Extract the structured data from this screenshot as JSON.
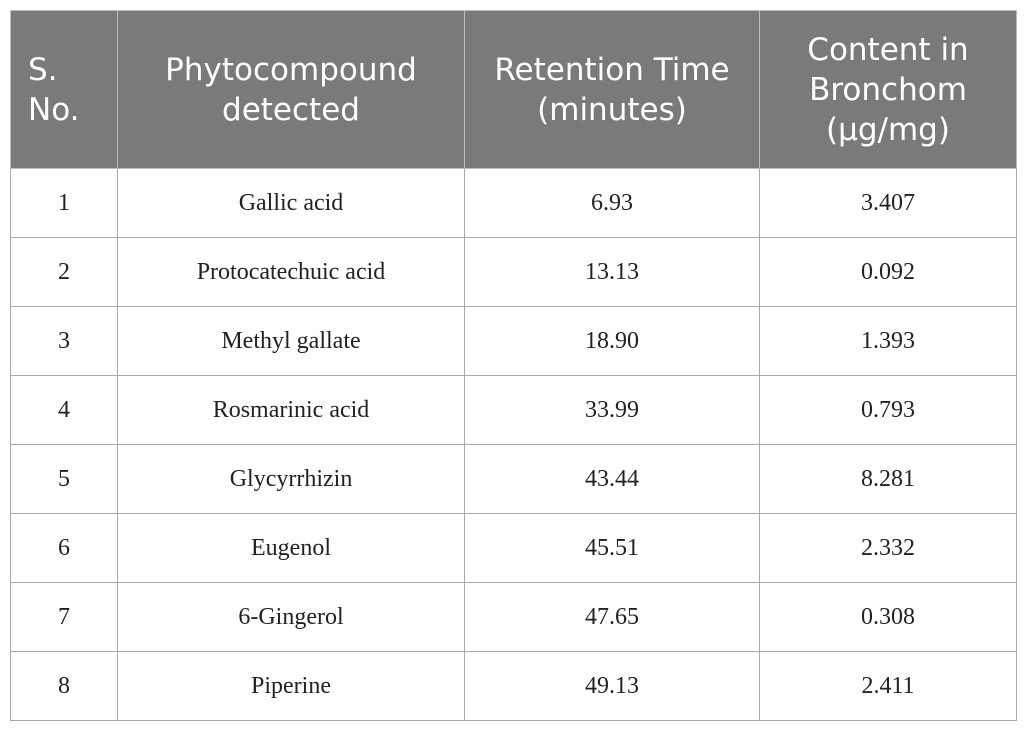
{
  "table": {
    "headers": [
      "S. No.",
      "Phytocompound detected",
      "Retention Time (minutes)",
      "Content in Bronchom (µg/mg)"
    ],
    "rows": [
      [
        "1",
        "Gallic acid",
        "6.93",
        "3.407"
      ],
      [
        "2",
        "Protocatechuic acid",
        "13.13",
        "0.092"
      ],
      [
        "3",
        "Methyl gallate",
        "18.90",
        "1.393"
      ],
      [
        "4",
        "Rosmarinic acid",
        "33.99",
        "0.793"
      ],
      [
        "5",
        "Glycyrrhizin",
        "43.44",
        "8.281"
      ],
      [
        "6",
        "Eugenol",
        "45.51",
        "2.332"
      ],
      [
        "7",
        "6-Gingerol",
        "47.65",
        "0.308"
      ],
      [
        "8",
        "Piperine",
        "49.13",
        "2.411"
      ]
    ]
  },
  "colors": {
    "header_bg": "#7a7a7a",
    "header_text": "#ffffff",
    "border": "#a9a9a9"
  }
}
